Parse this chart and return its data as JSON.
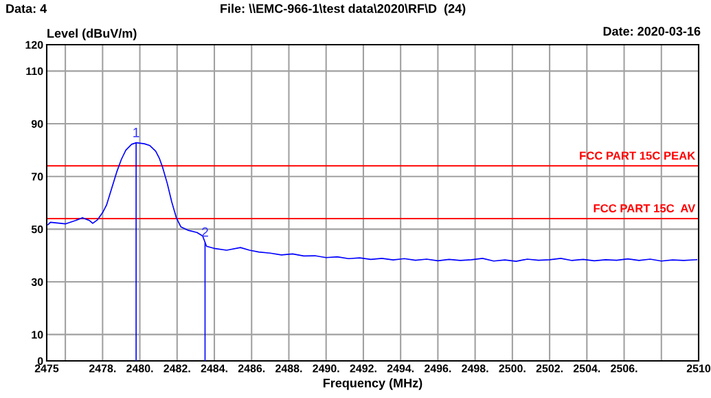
{
  "chart_data": {
    "type": "line",
    "xlabel": "Frequency (MHz)",
    "ylabel": "Level (dBuV/m)",
    "xlim": [
      2475,
      2510
    ],
    "ylim": [
      0,
      120
    ],
    "xticks": [
      2475,
      {
        "value": 2476,
        "label": null
      },
      {
        "value": 2478,
        "label": "2478."
      },
      {
        "value": 2480,
        "label": "2480."
      },
      {
        "value": 2482,
        "label": "2482."
      },
      {
        "value": 2484,
        "label": "2484."
      },
      {
        "value": 2486,
        "label": "2486."
      },
      {
        "value": 2488,
        "label": "2488."
      },
      {
        "value": 2490,
        "label": "2490."
      },
      {
        "value": 2492,
        "label": "2492."
      },
      {
        "value": 2494,
        "label": "2494."
      },
      {
        "value": 2496,
        "label": "2496."
      },
      {
        "value": 2498,
        "label": "2498."
      },
      {
        "value": 2500,
        "label": "2500."
      },
      {
        "value": 2502,
        "label": "2502."
      },
      {
        "value": 2504,
        "label": "2504."
      },
      {
        "value": 2506,
        "label": "2506."
      },
      {
        "value": 2508,
        "label": null
      },
      2510
    ],
    "yticks": [
      0,
      10,
      30,
      50,
      70,
      90,
      110,
      120
    ],
    "grid": true,
    "series": [
      {
        "color": "#0000ff",
        "x": [
          2475.07,
          2475.2,
          2476.0,
          2476.55,
          2476.92,
          2477.29,
          2477.47,
          2477.72,
          2478.02,
          2478.21,
          2478.46,
          2478.76,
          2479.01,
          2479.25,
          2479.56,
          2479.81,
          2480.24,
          2480.54,
          2480.85,
          2481.04,
          2481.22,
          2481.47,
          2481.71,
          2481.96,
          2482.2,
          2482.57,
          2483.07,
          2483.37,
          2483.49,
          2483.58,
          2484.05,
          2484.66,
          2485.4,
          2485.89,
          2486.39,
          2487.0,
          2487.6,
          2488.2,
          2488.8,
          2489.4,
          2490.0,
          2490.6,
          2491.2,
          2491.8,
          2492.4,
          2493.0,
          2493.6,
          2494.2,
          2494.8,
          2495.4,
          2496.0,
          2496.6,
          2497.2,
          2497.8,
          2498.4,
          2499.0,
          2499.6,
          2500.2,
          2500.8,
          2501.4,
          2502.0,
          2502.6,
          2503.2,
          2503.8,
          2504.4,
          2505.0,
          2505.6,
          2506.2,
          2506.8,
          2507.4,
          2508.0,
          2508.6,
          2509.2,
          2509.9
        ],
        "values": [
          51.7,
          52.6,
          52.0,
          53.3,
          54.3,
          53.3,
          52.2,
          53.5,
          56.5,
          59.1,
          64.8,
          71.7,
          76.5,
          80.0,
          82.2,
          82.8,
          82.4,
          81.7,
          79.6,
          77.0,
          73.5,
          67.4,
          60.4,
          54.3,
          50.9,
          49.6,
          48.7,
          47.4,
          45.2,
          43.5,
          42.6,
          42.0,
          43.0,
          42.0,
          41.3,
          40.9,
          40.2,
          40.6,
          39.8,
          39.9,
          39.2,
          39.5,
          38.8,
          39.1,
          38.5,
          38.9,
          38.3,
          38.8,
          38.2,
          38.6,
          38.0,
          38.5,
          38.1,
          38.4,
          38.9,
          37.9,
          38.3,
          37.8,
          38.6,
          38.2,
          38.4,
          38.9,
          38.1,
          38.5,
          38.0,
          38.4,
          38.2,
          38.7,
          38.1,
          38.6,
          37.9,
          38.3,
          38.1,
          38.4
        ]
      },
      {
        "type": "bar",
        "color": "#0000ff",
        "x": [
          2479.8,
          2483.5
        ],
        "values": [
          82.8,
          45
        ]
      }
    ],
    "ref_lines": [
      {
        "axis": "y",
        "value": 74,
        "label": "FCC PART 15C PEAK",
        "color": "#ff0000"
      },
      {
        "axis": "y",
        "value": 54,
        "label": "FCC PART 15C  AV",
        "color": "#ff0000"
      }
    ],
    "annotations": [
      "Data: 4",
      "File: \\\\EMC-966-1\\test data\\2020\\RF\\D  (24)",
      "Date: 2020-03-16",
      {
        "text": "1",
        "x": 2479.8,
        "y": 82.8
      },
      {
        "text": "2",
        "x": 2483.5,
        "y": 45
      }
    ]
  }
}
